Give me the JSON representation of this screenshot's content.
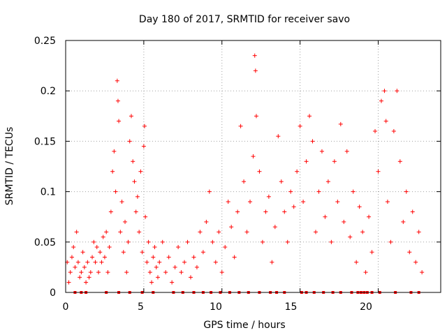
{
  "chart_data": {
    "type": "scatter",
    "title": "Day 180 of 2017, SRMTID for receiver savo",
    "xlabel": "GPS time / hours",
    "ylabel": "SRMTID / TECUs",
    "xlim": [
      0,
      24
    ],
    "ylim": [
      0,
      0.25
    ],
    "xticks": [
      0,
      5,
      10,
      15,
      20
    ],
    "yticks": [
      0,
      0.05,
      0.1,
      0.15,
      0.2,
      0.25
    ],
    "xtick_labels": [
      "0",
      "5",
      "10",
      "15",
      "20"
    ],
    "ytick_labels": [
      "0",
      "0.05",
      "0.1",
      "0.15",
      "0.2",
      "0.25"
    ],
    "grid": true,
    "marker": "+",
    "color": "#ff0000",
    "series": [
      {
        "name": "SRMTID",
        "points": [
          [
            0.1,
            0.03
          ],
          [
            0.2,
            0.01
          ],
          [
            0.3,
            0.02
          ],
          [
            0.4,
            0.035
          ],
          [
            0.5,
            0.045
          ],
          [
            0.6,
            0.025
          ],
          [
            0.7,
            0.06
          ],
          [
            0.8,
            0.03
          ],
          [
            0.9,
            0.015
          ],
          [
            1.0,
            0.02
          ],
          [
            1.1,
            0.04
          ],
          [
            1.2,
            0.025
          ],
          [
            1.3,
            0.01
          ],
          [
            1.4,
            0.03
          ],
          [
            1.5,
            0.015
          ],
          [
            1.6,
            0.02
          ],
          [
            1.7,
            0.035
          ],
          [
            1.8,
            0.05
          ],
          [
            1.9,
            0.03
          ],
          [
            2.0,
            0.045
          ],
          [
            2.1,
            0.02
          ],
          [
            2.2,
            0.04
          ],
          [
            2.3,
            0.03
          ],
          [
            2.4,
            0.055
          ],
          [
            2.5,
            0.035
          ],
          [
            2.6,
            0.06
          ],
          [
            2.7,
            0.02
          ],
          [
            2.8,
            0.045
          ],
          [
            2.9,
            0.08
          ],
          [
            3.0,
            0.12
          ],
          [
            3.1,
            0.14
          ],
          [
            3.2,
            0.1
          ],
          [
            3.3,
            0.21
          ],
          [
            3.35,
            0.19
          ],
          [
            3.4,
            0.17
          ],
          [
            3.5,
            0.06
          ],
          [
            3.6,
            0.09
          ],
          [
            3.7,
            0.04
          ],
          [
            3.8,
            0.07
          ],
          [
            3.9,
            0.02
          ],
          [
            4.0,
            0.05
          ],
          [
            4.1,
            0.15
          ],
          [
            4.2,
            0.175
          ],
          [
            4.3,
            0.13
          ],
          [
            4.4,
            0.11
          ],
          [
            4.5,
            0.08
          ],
          [
            4.6,
            0.095
          ],
          [
            4.7,
            0.06
          ],
          [
            4.8,
            0.12
          ],
          [
            4.9,
            0.04
          ],
          [
            5.0,
            0.145
          ],
          [
            5.05,
            0.165
          ],
          [
            5.1,
            0.075
          ],
          [
            5.2,
            0.03
          ],
          [
            5.3,
            0.05
          ],
          [
            5.4,
            0.02
          ],
          [
            5.5,
            0.01
          ],
          [
            5.6,
            0.035
          ],
          [
            5.7,
            0.045
          ],
          [
            5.8,
            0.025
          ],
          [
            5.9,
            0.015
          ],
          [
            6.0,
            0.03
          ],
          [
            6.2,
            0.05
          ],
          [
            6.4,
            0.02
          ],
          [
            6.6,
            0.035
          ],
          [
            6.8,
            0.01
          ],
          [
            7.0,
            0.025
          ],
          [
            7.2,
            0.045
          ],
          [
            7.4,
            0.02
          ],
          [
            7.6,
            0.03
          ],
          [
            7.8,
            0.05
          ],
          [
            8.0,
            0.015
          ],
          [
            8.2,
            0.035
          ],
          [
            8.4,
            0.025
          ],
          [
            8.6,
            0.06
          ],
          [
            8.8,
            0.04
          ],
          [
            9.0,
            0.07
          ],
          [
            9.2,
            0.1
          ],
          [
            9.4,
            0.05
          ],
          [
            9.6,
            0.03
          ],
          [
            9.8,
            0.06
          ],
          [
            10.0,
            0.02
          ],
          [
            10.2,
            0.045
          ],
          [
            10.4,
            0.09
          ],
          [
            10.6,
            0.065
          ],
          [
            10.8,
            0.035
          ],
          [
            11.0,
            0.08
          ],
          [
            11.2,
            0.165
          ],
          [
            11.4,
            0.11
          ],
          [
            11.6,
            0.06
          ],
          [
            11.8,
            0.09
          ],
          [
            12.0,
            0.135
          ],
          [
            12.1,
            0.235
          ],
          [
            12.15,
            0.22
          ],
          [
            12.2,
            0.175
          ],
          [
            12.4,
            0.12
          ],
          [
            12.6,
            0.05
          ],
          [
            12.8,
            0.08
          ],
          [
            13.0,
            0.095
          ],
          [
            13.2,
            0.03
          ],
          [
            13.4,
            0.065
          ],
          [
            13.6,
            0.155
          ],
          [
            13.8,
            0.11
          ],
          [
            14.0,
            0.08
          ],
          [
            14.2,
            0.05
          ],
          [
            14.4,
            0.1
          ],
          [
            14.6,
            0.085
          ],
          [
            14.8,
            0.12
          ],
          [
            15.0,
            0.165
          ],
          [
            15.2,
            0.09
          ],
          [
            15.4,
            0.13
          ],
          [
            15.6,
            0.175
          ],
          [
            15.8,
            0.15
          ],
          [
            16.0,
            0.06
          ],
          [
            16.2,
            0.1
          ],
          [
            16.4,
            0.14
          ],
          [
            16.6,
            0.075
          ],
          [
            16.8,
            0.11
          ],
          [
            17.0,
            0.05
          ],
          [
            17.2,
            0.13
          ],
          [
            17.4,
            0.09
          ],
          [
            17.6,
            0.167
          ],
          [
            17.8,
            0.07
          ],
          [
            18.0,
            0.14
          ],
          [
            18.2,
            0.055
          ],
          [
            18.4,
            0.1
          ],
          [
            18.6,
            0.03
          ],
          [
            18.8,
            0.085
          ],
          [
            19.0,
            0.06
          ],
          [
            19.2,
            0.02
          ],
          [
            19.4,
            0.075
          ],
          [
            19.6,
            0.04
          ],
          [
            19.8,
            0.16
          ],
          [
            20.0,
            0.12
          ],
          [
            20.2,
            0.19
          ],
          [
            20.4,
            0.2
          ],
          [
            20.5,
            0.17
          ],
          [
            20.6,
            0.09
          ],
          [
            20.8,
            0.05
          ],
          [
            21.0,
            0.16
          ],
          [
            21.2,
            0.2
          ],
          [
            21.4,
            0.13
          ],
          [
            21.6,
            0.07
          ],
          [
            21.8,
            0.1
          ],
          [
            22.0,
            0.04
          ],
          [
            22.2,
            0.08
          ],
          [
            22.4,
            0.03
          ],
          [
            22.6,
            0.06
          ],
          [
            22.8,
            0.02
          ]
        ]
      }
    ],
    "baseline_markers": [
      0.6,
      1.0,
      1.3,
      2.6,
      3.4,
      4.1,
      4.9,
      5.6,
      6.9,
      7.5,
      8.2,
      8.8,
      9.3,
      9.9,
      10.5,
      11.1,
      11.7,
      12.4,
      13.1,
      13.5,
      14.0,
      15.1,
      15.4,
      15.9,
      16.5,
      17.1,
      17.6,
      18.3,
      18.7,
      18.9,
      19.1,
      19.3,
      19.6,
      20.1,
      21.1,
      22.1,
      22.6
    ]
  }
}
